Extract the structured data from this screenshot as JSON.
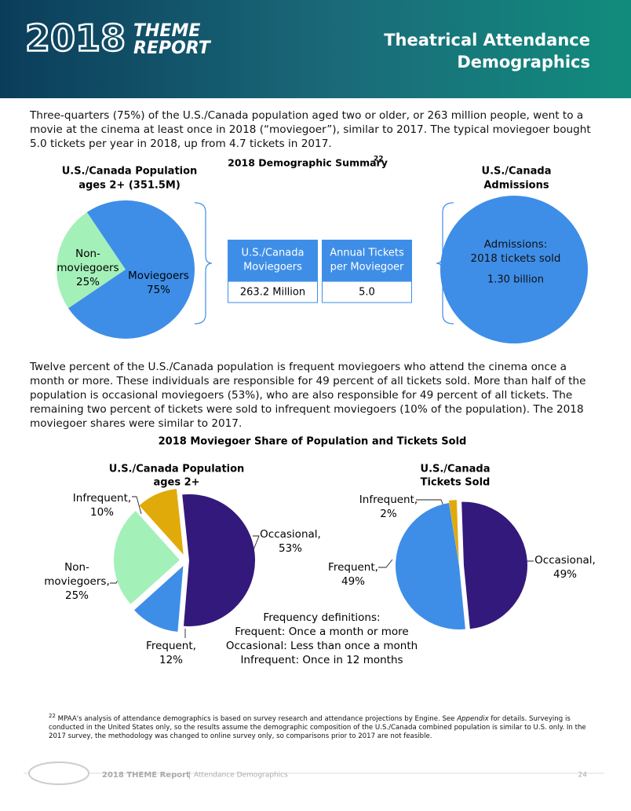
{
  "header": {
    "logo_year": "2018",
    "logo_word1": "THEME",
    "logo_word2": "REPORT",
    "title_line1": "Theatrical Attendance",
    "title_line2": "Demographics"
  },
  "intro": "Three-quarters (75%) of the U.S./Canada population aged two or older, or 263 million people, went to a movie at the cinema at least once in 2018 (“moviegoer”), similar to 2017. The typical moviegoer bought 5.0 tickets per year in 2018, up from 4.7 tickets in 2017.",
  "summary": {
    "title": "2018 Demographic Summary",
    "footnote_ref": "22",
    "population_pie": {
      "title_line1": "U.S./Canada Population",
      "title_line2": "ages 2+ (351.5M)",
      "slices": [
        {
          "label_lines": [
            "Non-",
            "moviegoers"
          ],
          "value": 25,
          "value_label": "25%",
          "color": "#a4f0b9"
        },
        {
          "label_lines": [
            "Moviegoers"
          ],
          "value": 75,
          "value_label": "75%",
          "color": "#3e8ee8"
        }
      ]
    },
    "boxes": [
      {
        "heading_lines": [
          "U.S./Canada",
          "Moviegoers"
        ],
        "value_text": "263.2 Million"
      },
      {
        "heading_lines": [
          "Annual Tickets",
          "per Moviegoer"
        ],
        "value_text": "5.0"
      }
    ],
    "admissions": {
      "title_line1": "U.S./Canada",
      "title_line2": "Admissions",
      "circle_lines": [
        "Admissions:",
        "2018 tickets sold"
      ],
      "value_text": "1.30 billion",
      "color": "#3e8ee8"
    }
  },
  "paragraph2": "Twelve percent of the U.S./Canada population is frequent moviegoers who attend the cinema once a month or more. These individuals are responsible for 49 percent of all tickets sold. More than half of the population is occasional moviegoers (53%), who are also responsible for 49 percent of all tickets. The remaining two percent of tickets were sold to infrequent moviegoers (10% of the population). The 2018 moviegoer shares were similar to 2017.",
  "share": {
    "title": "2018 Moviegoer Share of Population and Tickets Sold",
    "population_pie": {
      "title_line1": "U.S./Canada Population",
      "title_line2": "ages 2+",
      "slices": [
        {
          "label_lines": [
            "Occasional,"
          ],
          "value": 53,
          "value_label": "53%",
          "color": "#33197b"
        },
        {
          "label_lines": [
            "Frequent,"
          ],
          "value": 12,
          "value_label": "12%",
          "color": "#3e8ee8"
        },
        {
          "label_lines": [
            "Non-",
            "moviegoers,"
          ],
          "value": 25,
          "value_label": "25%",
          "color": "#a4f0b9"
        },
        {
          "label_lines": [
            "Infrequent,"
          ],
          "value": 10,
          "value_label": "10%",
          "color": "#e0aa0a"
        }
      ]
    },
    "tickets_pie": {
      "title_line1": "U.S./Canada",
      "title_line2": "Tickets Sold",
      "slices": [
        {
          "label_lines": [
            "Occasional,"
          ],
          "value": 49,
          "value_label": "49%",
          "color": "#33197b"
        },
        {
          "label_lines": [
            "Frequent,"
          ],
          "value": 49,
          "value_label": "49%",
          "color": "#3e8ee8"
        },
        {
          "label_lines": [
            "Infrequent,"
          ],
          "value": 2,
          "value_label": "2%",
          "color": "#e0aa0a"
        }
      ]
    },
    "definitions": {
      "title": "Frequency definitions:",
      "lines": [
        "Frequent: Once a month or more",
        "Occasional: Less than once a month",
        "Infrequent: Once in 12 months"
      ]
    }
  },
  "footnote": {
    "number": "22",
    "parts": [
      "MPAA's analysis of attendance demographics is based on survey research and attendance projections by Engine. See ",
      "Appendix",
      " for details. Surveying is conducted in the United States only, so the results assume the demographic composition of the U.S./Canada combined population is similar to U.S. only. In the 2017 survey, the methodology was changed to online survey only, so comparisons prior to 2017 are not feasible."
    ]
  },
  "footer": {
    "report": "2018 THEME Report",
    "separator": "|",
    "section": "Attendance Demographics",
    "page": "24"
  }
}
